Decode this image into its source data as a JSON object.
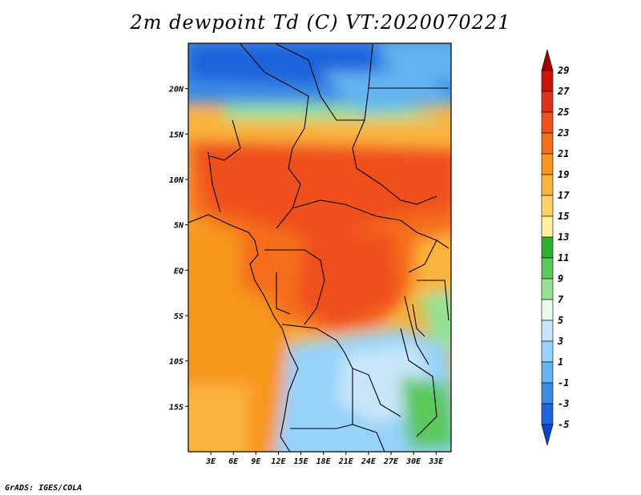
{
  "title": "2m dewpoint Td (C) VT:2020070221",
  "credit": "GrADS: IGES/COLA",
  "map": {
    "lon_range": [
      0,
      35
    ],
    "lat_range": [
      -20,
      25
    ],
    "lon_ticks": [
      "3E",
      "6E",
      "9E",
      "12E",
      "15E",
      "18E",
      "21E",
      "24E",
      "27E",
      "30E",
      "33E"
    ],
    "lon_tick_values": [
      3,
      6,
      9,
      12,
      15,
      18,
      21,
      24,
      27,
      30,
      33
    ],
    "lat_ticks": [
      "20N",
      "15N",
      "10N",
      "5N",
      "EQ",
      "5S",
      "10S",
      "15S"
    ],
    "lat_tick_values": [
      20,
      15,
      10,
      5,
      0,
      -5,
      -10,
      -15
    ]
  },
  "colorbar": {
    "labels": [
      "29",
      "27",
      "25",
      "23",
      "21",
      "19",
      "17",
      "15",
      "13",
      "11",
      "9",
      "7",
      "5",
      "3",
      "1",
      "-1",
      "-3",
      "-5"
    ],
    "colors": [
      "#a50000",
      "#c8140a",
      "#e03218",
      "#f0501e",
      "#f56e1e",
      "#f8961e",
      "#fab43c",
      "#fcd264",
      "#fff0a0",
      "#30b030",
      "#5ac85a",
      "#96e196",
      "#e6fae6",
      "#c8e6fa",
      "#96d2fa",
      "#64b4f0",
      "#3c8ce6",
      "#1e64dc",
      "#0a46c8"
    ]
  }
}
